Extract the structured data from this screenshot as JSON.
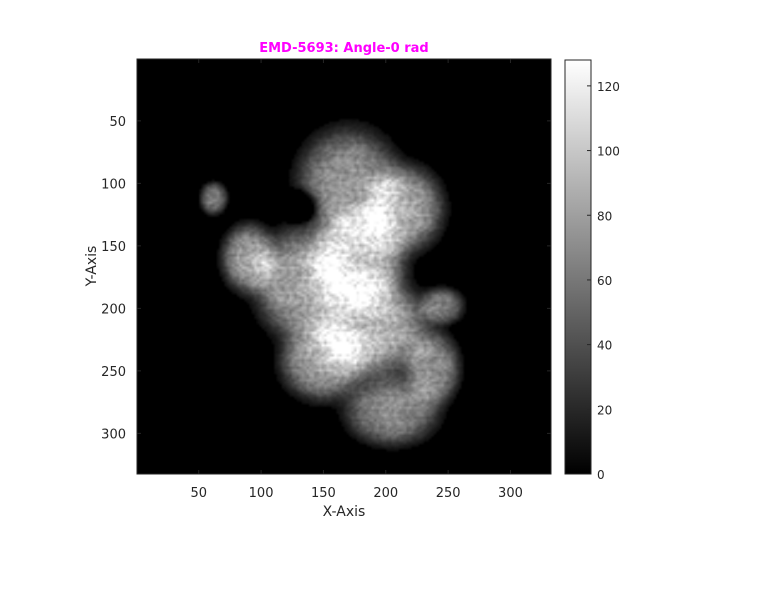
{
  "chart_data": {
    "type": "heatmap",
    "title": "EMD-5693: Angle-0 rad",
    "title_color": "#ff00ff",
    "xlabel": "X-Axis",
    "ylabel": "Y-Axis",
    "xlim": [
      0.5,
      332.5
    ],
    "ylim": [
      0.5,
      332.5
    ],
    "y_reversed": true,
    "x_ticks": [
      50,
      100,
      150,
      200,
      250,
      300
    ],
    "y_ticks": [
      50,
      100,
      150,
      200,
      250,
      300
    ],
    "colormap": "gray",
    "colorbar": {
      "range": [
        0,
        128
      ],
      "ticks": [
        0,
        20,
        40,
        60,
        80,
        100,
        120
      ]
    },
    "background_value": 0,
    "density_blobs": [
      {
        "x": 170,
        "y": 100,
        "rx": 42,
        "ry": 45,
        "v": 85
      },
      {
        "x": 215,
        "y": 120,
        "rx": 32,
        "ry": 35,
        "v": 95
      },
      {
        "x": 178,
        "y": 160,
        "rx": 38,
        "ry": 40,
        "v": 118
      },
      {
        "x": 132,
        "y": 180,
        "rx": 38,
        "ry": 45,
        "v": 95
      },
      {
        "x": 90,
        "y": 160,
        "rx": 22,
        "ry": 28,
        "v": 90
      },
      {
        "x": 62,
        "y": 112,
        "rx": 11,
        "ry": 13,
        "v": 72
      },
      {
        "x": 190,
        "y": 215,
        "rx": 45,
        "ry": 40,
        "v": 108
      },
      {
        "x": 150,
        "y": 242,
        "rx": 35,
        "ry": 32,
        "v": 95
      },
      {
        "x": 205,
        "y": 282,
        "rx": 38,
        "ry": 28,
        "v": 80
      },
      {
        "x": 238,
        "y": 248,
        "rx": 22,
        "ry": 30,
        "v": 80
      },
      {
        "x": 245,
        "y": 198,
        "rx": 18,
        "ry": 15,
        "v": 70
      },
      {
        "x": 132,
        "y": 118,
        "rx": 16,
        "ry": 14,
        "v": -55
      }
    ]
  }
}
